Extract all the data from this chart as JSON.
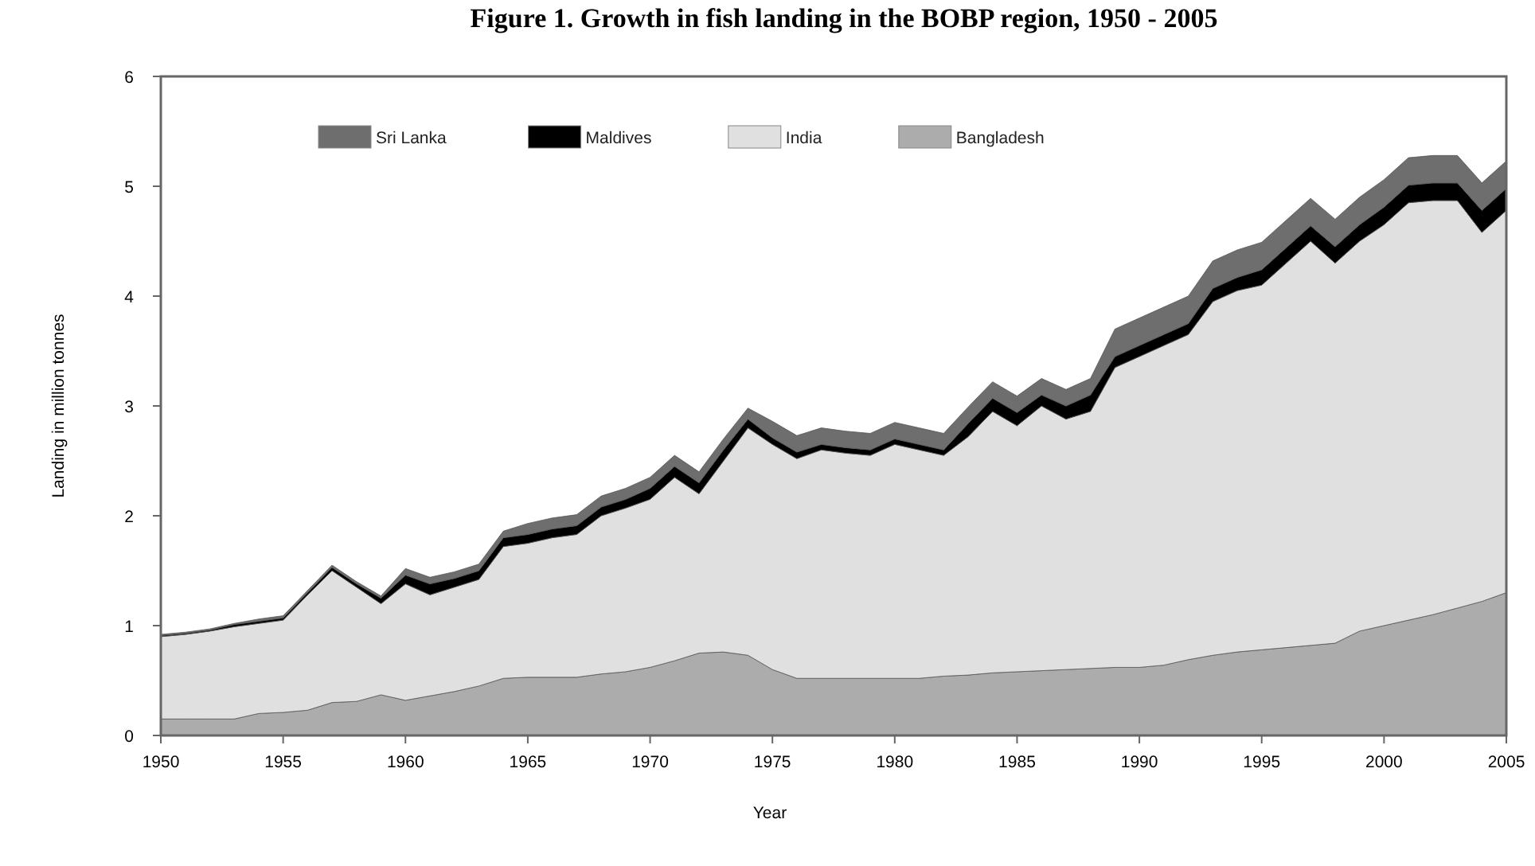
{
  "chart_data": {
    "type": "area",
    "stacked": true,
    "title": "Figure 1. Growth in fish landing in the BOBP region, 1950 - 2005",
    "xlabel": "Year",
    "ylabel": "Landing in million tonnes",
    "x": [
      1950,
      1951,
      1952,
      1953,
      1954,
      1955,
      1956,
      1957,
      1958,
      1959,
      1960,
      1961,
      1962,
      1963,
      1964,
      1965,
      1966,
      1967,
      1968,
      1969,
      1970,
      1971,
      1972,
      1973,
      1974,
      1975,
      1976,
      1977,
      1978,
      1979,
      1980,
      1981,
      1982,
      1983,
      1984,
      1985,
      1986,
      1987,
      1988,
      1989,
      1990,
      1991,
      1992,
      1993,
      1994,
      1995,
      1996,
      1997,
      1998,
      1999,
      2000,
      2001,
      2002,
      2003,
      2004,
      2005
    ],
    "xlim": [
      1950,
      2005
    ],
    "xticks": [
      1950,
      1955,
      1960,
      1965,
      1970,
      1975,
      1980,
      1985,
      1990,
      1995,
      2000,
      2005
    ],
    "ylim": [
      0,
      6
    ],
    "yticks": [
      0,
      1,
      2,
      3,
      4,
      5,
      6
    ],
    "legend": "top",
    "grid": false,
    "series": [
      {
        "name": "Bangladesh",
        "color": "#acacac",
        "values": [
          0.15,
          0.15,
          0.15,
          0.15,
          0.2,
          0.21,
          0.23,
          0.3,
          0.31,
          0.37,
          0.32,
          0.36,
          0.4,
          0.45,
          0.52,
          0.53,
          0.53,
          0.53,
          0.56,
          0.58,
          0.62,
          0.68,
          0.75,
          0.76,
          0.73,
          0.6,
          0.52,
          0.52,
          0.52,
          0.52,
          0.52,
          0.52,
          0.54,
          0.55,
          0.57,
          0.58,
          0.59,
          0.6,
          0.61,
          0.62,
          0.62,
          0.64,
          0.69,
          0.73,
          0.76,
          0.78,
          0.8,
          0.82,
          0.84,
          0.95,
          1.0,
          1.05,
          1.1,
          1.16,
          1.22,
          1.3
        ]
      },
      {
        "name": "India",
        "color": "#e0e0e0",
        "values": [
          0.75,
          0.77,
          0.8,
          0.84,
          0.82,
          0.84,
          1.05,
          1.2,
          1.04,
          0.83,
          1.06,
          0.92,
          0.95,
          0.97,
          1.2,
          1.22,
          1.27,
          1.3,
          1.44,
          1.49,
          1.53,
          1.67,
          1.45,
          1.74,
          2.07,
          2.05,
          2.0,
          2.08,
          2.05,
          2.03,
          2.13,
          2.08,
          2.01,
          2.17,
          2.38,
          2.24,
          2.41,
          2.28,
          2.34,
          2.73,
          2.83,
          2.91,
          2.96,
          3.22,
          3.29,
          3.32,
          3.5,
          3.68,
          3.46,
          3.55,
          3.65,
          3.8,
          3.77,
          3.71,
          3.36,
          3.48
        ]
      },
      {
        "name": "Maldives",
        "color": "#000000",
        "values": [
          0.01,
          0.01,
          0.01,
          0.02,
          0.02,
          0.02,
          0.02,
          0.03,
          0.03,
          0.05,
          0.08,
          0.1,
          0.08,
          0.08,
          0.08,
          0.08,
          0.08,
          0.08,
          0.08,
          0.08,
          0.1,
          0.1,
          0.1,
          0.1,
          0.08,
          0.06,
          0.06,
          0.05,
          0.05,
          0.05,
          0.05,
          0.05,
          0.05,
          0.12,
          0.12,
          0.12,
          0.1,
          0.12,
          0.15,
          0.1,
          0.1,
          0.1,
          0.1,
          0.12,
          0.12,
          0.14,
          0.14,
          0.14,
          0.15,
          0.15,
          0.16,
          0.16,
          0.16,
          0.16,
          0.2,
          0.2
        ]
      },
      {
        "name": "Sri Lanka",
        "color": "#6e6e6e",
        "values": [
          0.01,
          0.01,
          0.01,
          0.01,
          0.02,
          0.02,
          0.02,
          0.02,
          0.02,
          0.02,
          0.06,
          0.06,
          0.06,
          0.06,
          0.06,
          0.1,
          0.1,
          0.1,
          0.1,
          0.1,
          0.1,
          0.1,
          0.1,
          0.1,
          0.1,
          0.15,
          0.15,
          0.15,
          0.15,
          0.15,
          0.15,
          0.15,
          0.15,
          0.15,
          0.15,
          0.15,
          0.15,
          0.15,
          0.15,
          0.25,
          0.25,
          0.25,
          0.25,
          0.25,
          0.25,
          0.25,
          0.25,
          0.25,
          0.25,
          0.25,
          0.25,
          0.25,
          0.25,
          0.25,
          0.25,
          0.25
        ]
      }
    ]
  }
}
